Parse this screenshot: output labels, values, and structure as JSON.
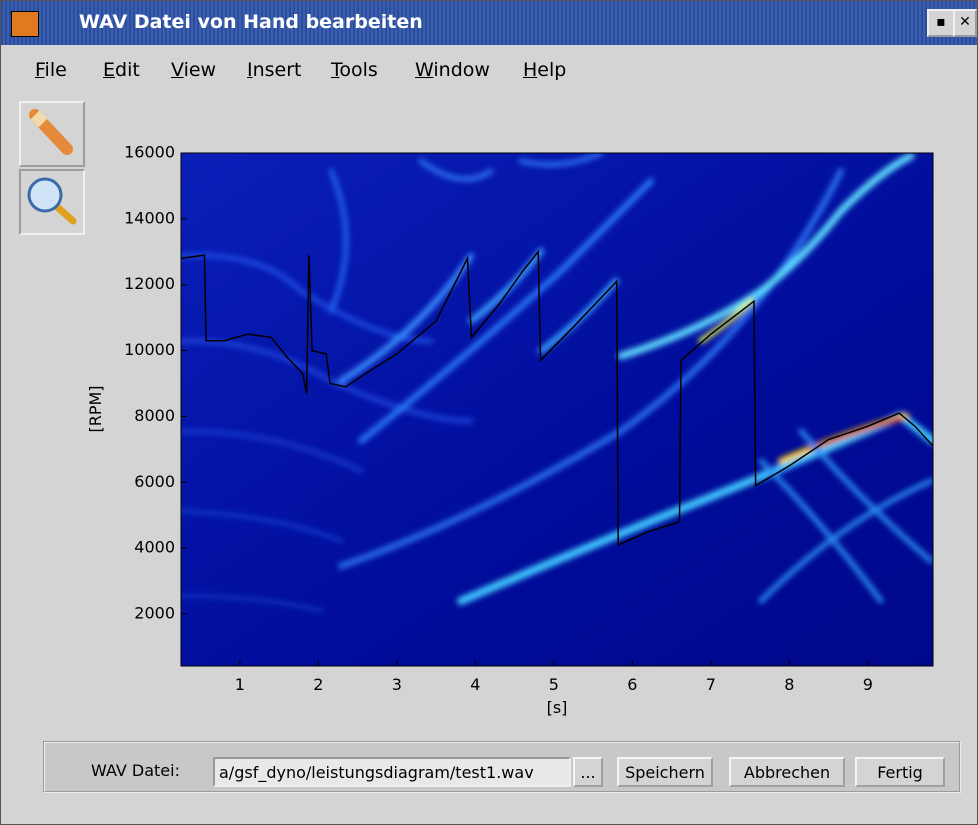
{
  "window": {
    "title": "WAV Datei von Hand bearbeiten"
  },
  "menu": [
    "File",
    "Edit",
    "View",
    "Insert",
    "Tools",
    "Window",
    "Help"
  ],
  "chart_data": {
    "type": "line",
    "xlabel": "[s]",
    "ylabel": "[RPM]",
    "color": "#000000",
    "x": [
      0.25,
      0.55,
      0.57,
      0.8,
      1.1,
      1.4,
      1.6,
      1.8,
      1.85,
      1.88,
      1.92,
      2.1,
      2.15,
      2.35,
      2.6,
      3.0,
      3.5,
      3.9,
      3.95,
      4.3,
      4.6,
      4.8,
      4.83,
      5.2,
      5.8,
      5.82,
      6.2,
      6.6,
      6.62,
      7.0,
      7.55,
      7.57,
      8.0,
      8.5,
      9.0,
      9.4,
      9.6,
      9.83
    ],
    "values": [
      12800,
      12900,
      10300,
      10300,
      10500,
      10400,
      9800,
      9300,
      8700,
      12900,
      10000,
      9900,
      9000,
      8900,
      9300,
      9900,
      10900,
      12800,
      10400,
      11400,
      12400,
      13000,
      9700,
      10600,
      12100,
      4100,
      4500,
      4800,
      9700,
      10500,
      11500,
      5900,
      6500,
      7300,
      7700,
      8100,
      7700,
      7100
    ],
    "xlim": [
      0.25,
      9.83
    ],
    "ylim": [
      420,
      16000
    ],
    "xticks": [
      1,
      2,
      3,
      4,
      5,
      6,
      7,
      8,
      9
    ],
    "yticks": [
      2000,
      4000,
      6000,
      8000,
      10000,
      12000,
      14000,
      16000
    ]
  },
  "footer": {
    "label": "WAV Datei:",
    "path": "a/gsf_dyno/leistungsdiagram/test1.wav",
    "buttons": [
      "...",
      "Speichern",
      "Abbrechen",
      "Fertig"
    ]
  }
}
